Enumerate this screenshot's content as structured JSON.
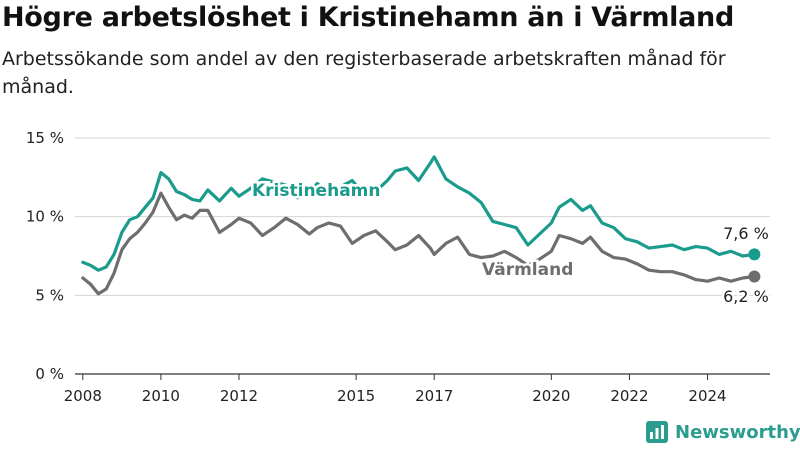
{
  "title": "Högre arbetslöshet i Kristinehamn än i Värmland",
  "subtitle": "Arbetssökande som andel av den registerbaserade arbetskraften månad för månad.",
  "brand": "Newsworthy",
  "colors": {
    "kristinehamn": "#1a9b8c",
    "varmland": "#6e6e6e",
    "grid": "#d4d4d4",
    "axis": "#333333",
    "brand": "#2a9d8f"
  },
  "chart_data": {
    "type": "line",
    "title": "",
    "xlabel": "",
    "ylabel": "",
    "xlim": [
      2007.8,
      2025.6
    ],
    "ylim": [
      0,
      15
    ],
    "yticks": [
      0,
      5,
      10,
      15
    ],
    "ytick_labels": [
      "0 %",
      "5 %",
      "10 %",
      "15 %"
    ],
    "xticks": [
      2008,
      2010,
      2012,
      2015,
      2017,
      2020,
      2022,
      2024
    ],
    "xtick_labels": [
      "2008",
      "2010",
      "2012",
      "2015",
      "2017",
      "2020",
      "2022",
      "2024"
    ],
    "grid": true,
    "legend": "inline labels",
    "series": [
      {
        "name": "Kristinehamn",
        "end_label": "7,6 %",
        "x": [
          2008.0,
          2008.2,
          2008.4,
          2008.6,
          2008.8,
          2009.0,
          2009.2,
          2009.4,
          2009.6,
          2009.8,
          2010.0,
          2010.2,
          2010.4,
          2010.6,
          2010.8,
          2011.0,
          2011.2,
          2011.5,
          2011.8,
          2012.0,
          2012.3,
          2012.6,
          2012.9,
          2013.2,
          2013.5,
          2013.8,
          2014.0,
          2014.3,
          2014.6,
          2014.9,
          2015.2,
          2015.5,
          2015.8,
          2016.0,
          2016.3,
          2016.6,
          2016.9,
          2017.0,
          2017.3,
          2017.6,
          2017.9,
          2018.2,
          2018.5,
          2018.8,
          2019.1,
          2019.4,
          2019.7,
          2020.0,
          2020.2,
          2020.5,
          2020.8,
          2021.0,
          2021.3,
          2021.6,
          2021.9,
          2022.2,
          2022.5,
          2022.8,
          2023.1,
          2023.4,
          2023.7,
          2024.0,
          2024.3,
          2024.6,
          2024.9,
          2025.2
        ],
        "values": [
          7.1,
          6.9,
          6.6,
          6.8,
          7.6,
          9.0,
          9.8,
          10.0,
          10.6,
          11.2,
          12.8,
          12.4,
          11.6,
          11.4,
          11.1,
          11.0,
          11.7,
          11.0,
          11.8,
          11.3,
          11.8,
          12.4,
          12.2,
          12.0,
          11.2,
          11.5,
          12.1,
          11.6,
          11.9,
          12.3,
          11.4,
          11.6,
          12.3,
          12.9,
          13.1,
          12.3,
          13.4,
          13.8,
          12.4,
          11.9,
          11.5,
          10.9,
          9.7,
          9.5,
          9.3,
          8.2,
          8.9,
          9.6,
          10.6,
          11.1,
          10.4,
          10.7,
          9.6,
          9.3,
          8.6,
          8.4,
          8.0,
          8.1,
          8.2,
          7.9,
          8.1,
          8.0,
          7.6,
          7.8,
          7.5,
          7.6
        ]
      },
      {
        "name": "Värmland",
        "end_label": "6,2 %",
        "x": [
          2008.0,
          2008.2,
          2008.4,
          2008.6,
          2008.8,
          2009.0,
          2009.2,
          2009.4,
          2009.6,
          2009.8,
          2010.0,
          2010.2,
          2010.4,
          2010.6,
          2010.8,
          2011.0,
          2011.2,
          2011.5,
          2011.8,
          2012.0,
          2012.3,
          2012.6,
          2012.9,
          2013.2,
          2013.5,
          2013.8,
          2014.0,
          2014.3,
          2014.6,
          2014.9,
          2015.2,
          2015.5,
          2015.8,
          2016.0,
          2016.3,
          2016.6,
          2016.9,
          2017.0,
          2017.3,
          2017.6,
          2017.9,
          2018.2,
          2018.5,
          2018.8,
          2019.1,
          2019.4,
          2019.7,
          2020.0,
          2020.2,
          2020.5,
          2020.8,
          2021.0,
          2021.3,
          2021.6,
          2021.9,
          2022.2,
          2022.5,
          2022.8,
          2023.1,
          2023.4,
          2023.7,
          2024.0,
          2024.3,
          2024.6,
          2024.9,
          2025.2
        ],
        "values": [
          6.1,
          5.7,
          5.1,
          5.4,
          6.4,
          7.9,
          8.6,
          9.0,
          9.6,
          10.3,
          11.5,
          10.6,
          9.8,
          10.1,
          9.9,
          10.4,
          10.4,
          9.0,
          9.5,
          9.9,
          9.6,
          8.8,
          9.3,
          9.9,
          9.5,
          8.9,
          9.3,
          9.6,
          9.4,
          8.3,
          8.8,
          9.1,
          8.4,
          7.9,
          8.2,
          8.8,
          8.0,
          7.6,
          8.3,
          8.7,
          7.6,
          7.4,
          7.5,
          7.8,
          7.4,
          6.9,
          7.3,
          7.8,
          8.8,
          8.6,
          8.3,
          8.7,
          7.8,
          7.4,
          7.3,
          7.0,
          6.6,
          6.5,
          6.5,
          6.3,
          6.0,
          5.9,
          6.1,
          5.9,
          6.1,
          6.2
        ]
      }
    ]
  }
}
